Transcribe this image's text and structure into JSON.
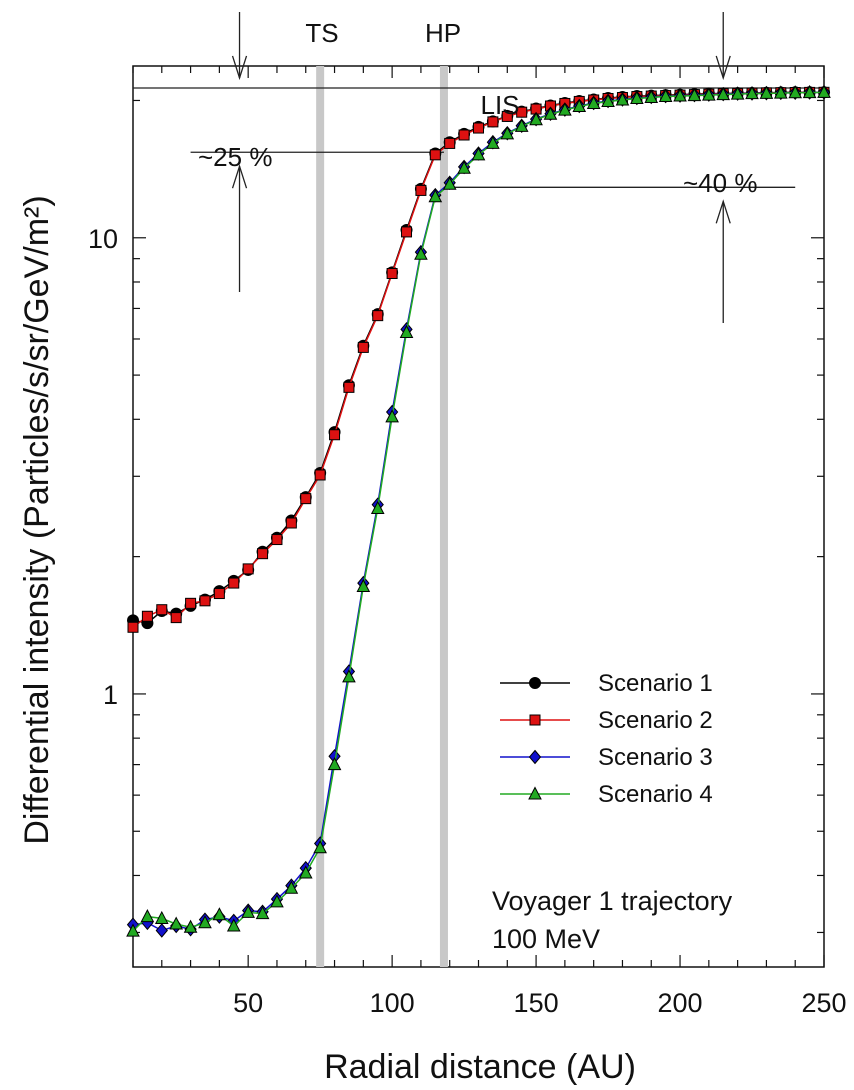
{
  "chart_data": {
    "type": "line",
    "xlabel": "Radial distance (AU)",
    "ylabel": "Differential intensity (Particles/s/sr/GeV/m²)",
    "y_scale": "log",
    "xlim": [
      10,
      250
    ],
    "ylim": [
      0.252,
      23.8
    ],
    "x_ticks": [
      50,
      100,
      150,
      200,
      250
    ],
    "y_ticks": [
      1,
      10
    ],
    "grid": false,
    "legend_position": "lower-right",
    "series": [
      {
        "name": "Scenario 1",
        "color": "#000000",
        "marker": "circle",
        "x": [
          10,
          15,
          20,
          25,
          30,
          35,
          40,
          45,
          50,
          55,
          60,
          65,
          70,
          75,
          80,
          85,
          90,
          95,
          100,
          105,
          110,
          115,
          120,
          125,
          130,
          135,
          140,
          145,
          150,
          155,
          160,
          165,
          170,
          175,
          180,
          185,
          190,
          195,
          200,
          205,
          210,
          215,
          220,
          225,
          230,
          235,
          240,
          245,
          250
        ],
        "y": [
          1.45,
          1.43,
          1.52,
          1.5,
          1.56,
          1.61,
          1.68,
          1.77,
          1.87,
          2.05,
          2.2,
          2.4,
          2.7,
          3.05,
          3.75,
          4.75,
          5.8,
          6.8,
          8.4,
          10.4,
          12.8,
          15.3,
          16.2,
          16.9,
          17.5,
          18.0,
          18.5,
          18.9,
          19.2,
          19.5,
          19.75,
          19.95,
          20.1,
          20.25,
          20.35,
          20.45,
          20.5,
          20.55,
          20.6,
          20.65,
          20.7,
          20.72,
          20.75,
          20.77,
          20.8,
          20.82,
          20.84,
          20.85,
          20.85
        ]
      },
      {
        "name": "Scenario 2",
        "color": "#dd1111",
        "marker": "square",
        "x": [
          10,
          15,
          20,
          25,
          30,
          35,
          40,
          45,
          50,
          55,
          60,
          65,
          70,
          75,
          80,
          85,
          90,
          95,
          100,
          105,
          110,
          115,
          120,
          125,
          130,
          135,
          140,
          145,
          150,
          155,
          160,
          165,
          170,
          175,
          180,
          185,
          190,
          195,
          200,
          205,
          210,
          215,
          220,
          225,
          230,
          235,
          240,
          245,
          250
        ],
        "y": [
          1.4,
          1.48,
          1.53,
          1.47,
          1.58,
          1.6,
          1.66,
          1.75,
          1.88,
          2.03,
          2.18,
          2.37,
          2.68,
          3.02,
          3.7,
          4.7,
          5.75,
          6.75,
          8.35,
          10.3,
          12.7,
          15.2,
          16.1,
          16.8,
          17.4,
          17.95,
          18.45,
          18.85,
          19.15,
          19.45,
          19.7,
          19.9,
          20.05,
          20.2,
          20.3,
          20.4,
          20.45,
          20.5,
          20.55,
          20.6,
          20.65,
          20.7,
          20.72,
          20.75,
          20.78,
          20.8,
          20.82,
          20.83,
          20.84
        ]
      },
      {
        "name": "Scenario 3",
        "color": "#1111cc",
        "marker": "diamond",
        "x": [
          10,
          15,
          20,
          25,
          30,
          35,
          40,
          45,
          50,
          55,
          60,
          65,
          70,
          75,
          80,
          85,
          90,
          95,
          100,
          105,
          110,
          115,
          120,
          125,
          130,
          135,
          140,
          145,
          150,
          155,
          160,
          165,
          170,
          175,
          180,
          185,
          190,
          195,
          200,
          205,
          210,
          215,
          220,
          225,
          230,
          235,
          240,
          245,
          250
        ],
        "y": [
          0.312,
          0.315,
          0.303,
          0.31,
          0.305,
          0.32,
          0.325,
          0.318,
          0.335,
          0.333,
          0.355,
          0.38,
          0.415,
          0.47,
          0.73,
          1.12,
          1.75,
          2.6,
          4.15,
          6.3,
          9.3,
          12.4,
          13.2,
          14.3,
          15.3,
          16.2,
          16.95,
          17.6,
          18.2,
          18.7,
          19.1,
          19.45,
          19.75,
          19.95,
          20.1,
          20.25,
          20.35,
          20.45,
          20.5,
          20.55,
          20.6,
          20.65,
          20.7,
          20.72,
          20.75,
          20.78,
          20.8,
          20.82,
          20.84
        ]
      },
      {
        "name": "Scenario 4",
        "color": "#22aa22",
        "marker": "triangle",
        "x": [
          10,
          15,
          20,
          25,
          30,
          35,
          40,
          45,
          50,
          55,
          60,
          65,
          70,
          75,
          80,
          85,
          90,
          95,
          100,
          105,
          110,
          115,
          120,
          125,
          130,
          135,
          140,
          145,
          150,
          155,
          160,
          165,
          170,
          175,
          180,
          185,
          190,
          195,
          200,
          205,
          210,
          215,
          220,
          225,
          230,
          235,
          240,
          245,
          250
        ],
        "y": [
          0.302,
          0.325,
          0.322,
          0.313,
          0.308,
          0.315,
          0.328,
          0.31,
          0.332,
          0.33,
          0.35,
          0.375,
          0.405,
          0.46,
          0.7,
          1.09,
          1.72,
          2.55,
          4.05,
          6.2,
          9.2,
          12.3,
          13.1,
          14.2,
          15.2,
          16.1,
          16.9,
          17.55,
          18.15,
          18.65,
          19.05,
          19.4,
          19.7,
          19.9,
          20.05,
          20.2,
          20.3,
          20.4,
          20.45,
          20.5,
          20.55,
          20.6,
          20.65,
          20.7,
          20.73,
          20.76,
          20.79,
          20.81,
          20.83
        ]
      }
    ],
    "boundaries": [
      {
        "label": "TS",
        "x": 75
      },
      {
        "label": "HP",
        "x": 118
      }
    ],
    "annotations": {
      "lis_label": "LIS",
      "lis_level": 21.3,
      "pct1_label": "~25 %",
      "pct1_level": 15.4,
      "pct2_label": "~40 %",
      "pct2_level": 12.9,
      "note_line1": "Voyager 1 trajectory",
      "note_line2": "100 MeV"
    }
  }
}
